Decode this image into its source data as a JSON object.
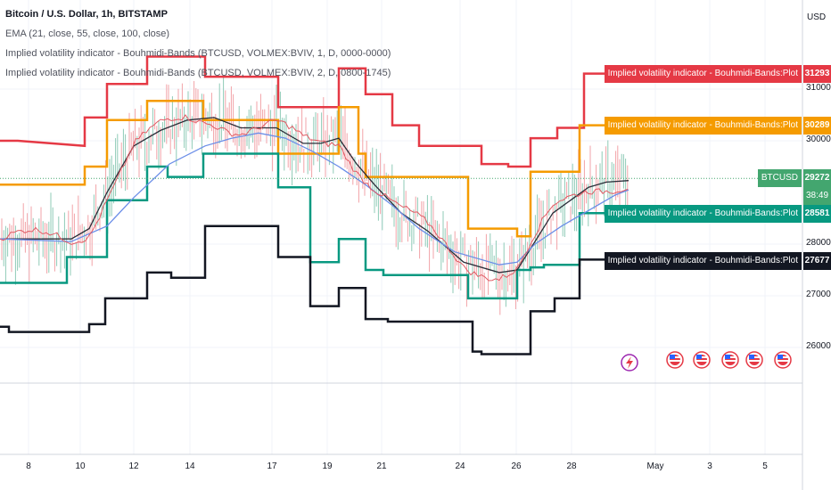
{
  "legend": {
    "title": "Bitcoin / U.S. Dollar, 1h, BITSTAMP",
    "ema": "EMA (21, close, 55, close, 100, close)",
    "ivi1": "Implied volatility indicator - Bouhmidi-Bands (BTCUSD, VOLMEX:BVIV, 1, D, 0000-0000)",
    "ivi2": "Implied volatility indicator - Bouhmidi-Bands (BTCUSD, VOLMEX:BVIV, 2, D, 0800-1745)"
  },
  "currency": "USD",
  "colors": {
    "red": "#e53945",
    "orange": "#f59b00",
    "green": "#089981",
    "black": "#131722",
    "btc": "#43a66f",
    "ema_red": "#e05a63",
    "ema_black": "#2a2e39",
    "ema_blue": "#6b8ee8"
  },
  "chart_data": {
    "type": "line",
    "y_ticks": [
      "31000",
      "30000",
      "28000",
      "27000",
      "26000"
    ],
    "x_ticks": [
      "8",
      "10",
      "12",
      "14",
      "17",
      "19",
      "21",
      "24",
      "26",
      "28",
      "May",
      "3",
      "5"
    ],
    "price_labels": [
      {
        "text": "Implied volatility indicator - Bouhmidi-Bands:Plot",
        "value": "31293",
        "color": "#e53945",
        "y": 31293
      },
      {
        "text": "Implied volatility indicator - Bouhmidi-Bands:Plot",
        "value": "30289",
        "color": "#f59b00",
        "y": 30289
      },
      {
        "text": "BTCUSD",
        "value": "29272",
        "sub": "38:49",
        "color": "#43a66f",
        "y": 29272
      },
      {
        "text": "Implied volatility indicator - Bouhmidi-Bands:Plot",
        "value": "28581",
        "color": "#089981",
        "y": 28581
      },
      {
        "text": "Implied volatility indicator - Bouhmidi-Bands:Plot",
        "value": "27677",
        "color": "#131722",
        "y": 27677
      }
    ],
    "series": [
      {
        "color": "#e53945",
        "values": [
          [
            0,
            30000
          ],
          [
            20,
            30000
          ],
          [
            20,
            30000
          ],
          [
            95,
            29900
          ],
          [
            95,
            30450
          ],
          [
            120,
            30450
          ],
          [
            120,
            31100
          ],
          [
            165,
            31100
          ],
          [
            165,
            31630
          ],
          [
            230,
            31630
          ],
          [
            230,
            31240
          ],
          [
            312,
            31240
          ],
          [
            312,
            30650
          ],
          [
            380,
            30650
          ],
          [
            380,
            31400
          ],
          [
            410,
            31400
          ],
          [
            410,
            30900
          ],
          [
            440,
            30900
          ],
          [
            440,
            30300
          ],
          [
            470,
            30300
          ],
          [
            470,
            29900
          ],
          [
            540,
            29900
          ],
          [
            540,
            29550
          ],
          [
            570,
            29550
          ],
          [
            570,
            29500
          ],
          [
            595,
            29500
          ],
          [
            595,
            30050
          ],
          [
            625,
            30050
          ],
          [
            625,
            30250
          ],
          [
            655,
            30250
          ],
          [
            655,
            31300
          ],
          [
            705,
            31300
          ]
        ]
      },
      {
        "color": "#f59b00",
        "values": [
          [
            0,
            29150
          ],
          [
            15,
            29150
          ],
          [
            95,
            29150
          ],
          [
            95,
            29500
          ],
          [
            120,
            29500
          ],
          [
            120,
            30400
          ],
          [
            165,
            30400
          ],
          [
            165,
            30770
          ],
          [
            228,
            30770
          ],
          [
            228,
            30400
          ],
          [
            312,
            30400
          ],
          [
            312,
            29750
          ],
          [
            380,
            29750
          ],
          [
            380,
            30650
          ],
          [
            402,
            30650
          ],
          [
            402,
            29750
          ],
          [
            410,
            29750
          ],
          [
            410,
            29300
          ],
          [
            525,
            29300
          ],
          [
            525,
            28300
          ],
          [
            580,
            28300
          ],
          [
            580,
            28150
          ],
          [
            595,
            28150
          ],
          [
            595,
            29400
          ],
          [
            650,
            29400
          ],
          [
            650,
            30300
          ],
          [
            705,
            30300
          ]
        ]
      },
      {
        "color": "#089981",
        "values": [
          [
            0,
            27250
          ],
          [
            75,
            27250
          ],
          [
            75,
            27750
          ],
          [
            120,
            27750
          ],
          [
            120,
            28850
          ],
          [
            165,
            28850
          ],
          [
            165,
            29500
          ],
          [
            188,
            29500
          ],
          [
            188,
            29300
          ],
          [
            228,
            29300
          ],
          [
            228,
            29750
          ],
          [
            312,
            29750
          ],
          [
            312,
            29100
          ],
          [
            348,
            29100
          ],
          [
            348,
            27650
          ],
          [
            380,
            27650
          ],
          [
            380,
            28100
          ],
          [
            410,
            28100
          ],
          [
            410,
            27500
          ],
          [
            430,
            27500
          ],
          [
            430,
            27400
          ],
          [
            525,
            27400
          ],
          [
            525,
            26950
          ],
          [
            580,
            26950
          ],
          [
            580,
            27500
          ],
          [
            595,
            27500
          ],
          [
            595,
            27550
          ],
          [
            610,
            27550
          ],
          [
            610,
            27600
          ],
          [
            650,
            27600
          ],
          [
            650,
            28600
          ],
          [
            705,
            28600
          ]
        ]
      },
      {
        "color": "#131722",
        "values": [
          [
            0,
            26400
          ],
          [
            10,
            26400
          ],
          [
            10,
            26300
          ],
          [
            100,
            26300
          ],
          [
            100,
            26450
          ],
          [
            118,
            26450
          ],
          [
            118,
            26950
          ],
          [
            165,
            26950
          ],
          [
            165,
            27450
          ],
          [
            192,
            27450
          ],
          [
            192,
            27350
          ],
          [
            230,
            27350
          ],
          [
            230,
            28350
          ],
          [
            312,
            28350
          ],
          [
            312,
            27750
          ],
          [
            348,
            27750
          ],
          [
            348,
            26800
          ],
          [
            380,
            26800
          ],
          [
            380,
            27150
          ],
          [
            410,
            27150
          ],
          [
            410,
            26550
          ],
          [
            435,
            26550
          ],
          [
            435,
            26500
          ],
          [
            530,
            26500
          ],
          [
            530,
            25920
          ],
          [
            540,
            25920
          ],
          [
            540,
            25870
          ],
          [
            595,
            25870
          ],
          [
            595,
            26700
          ],
          [
            622,
            26700
          ],
          [
            622,
            26950
          ],
          [
            650,
            26950
          ],
          [
            650,
            27700
          ],
          [
            705,
            27700
          ]
        ]
      },
      {
        "color": "#2a2e39",
        "values": [
          [
            0,
            28100
          ],
          [
            80,
            28100
          ],
          [
            100,
            28300
          ],
          [
            120,
            29000
          ],
          [
            150,
            29900
          ],
          [
            180,
            30200
          ],
          [
            210,
            30400
          ],
          [
            240,
            30450
          ],
          [
            270,
            30250
          ],
          [
            310,
            30250
          ],
          [
            340,
            29950
          ],
          [
            360,
            29950
          ],
          [
            380,
            30050
          ],
          [
            400,
            29550
          ],
          [
            420,
            29150
          ],
          [
            450,
            28600
          ],
          [
            480,
            28250
          ],
          [
            520,
            27650
          ],
          [
            560,
            27450
          ],
          [
            580,
            27500
          ],
          [
            600,
            28050
          ],
          [
            620,
            28600
          ],
          [
            640,
            28850
          ],
          [
            660,
            29100
          ],
          [
            680,
            29200
          ],
          [
            705,
            29230
          ]
        ]
      },
      {
        "color": "#6b8ee8",
        "values": [
          [
            0,
            28100
          ],
          [
            80,
            28050
          ],
          [
            120,
            28350
          ],
          [
            150,
            28900
          ],
          [
            190,
            29550
          ],
          [
            230,
            29900
          ],
          [
            260,
            30050
          ],
          [
            290,
            30150
          ],
          [
            320,
            30050
          ],
          [
            350,
            29800
          ],
          [
            380,
            29500
          ],
          [
            410,
            29150
          ],
          [
            440,
            28750
          ],
          [
            470,
            28300
          ],
          [
            510,
            27850
          ],
          [
            560,
            27600
          ],
          [
            580,
            27650
          ],
          [
            600,
            28000
          ],
          [
            630,
            28350
          ],
          [
            660,
            28650
          ],
          [
            690,
            28950
          ],
          [
            705,
            29050
          ]
        ]
      }
    ]
  }
}
